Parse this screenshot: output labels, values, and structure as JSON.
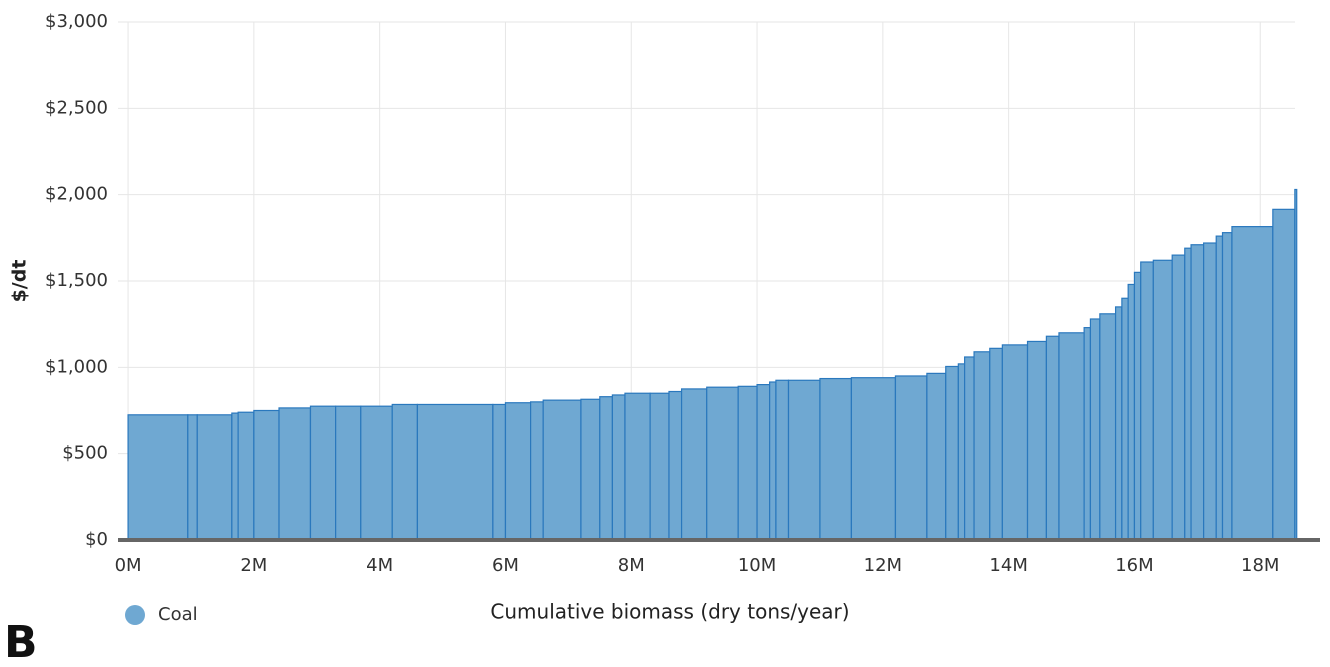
{
  "chart_data": {
    "type": "histogram",
    "bins": [
      0,
      0.95,
      1.1,
      1.65,
      1.75,
      2.0,
      2.4,
      2.9,
      3.3,
      3.7,
      4.2,
      4.6,
      5.8,
      6.0,
      6.4,
      6.6,
      7.2,
      7.5,
      7.7,
      7.9,
      8.3,
      8.6,
      8.8,
      9.2,
      9.7,
      10.0,
      10.2,
      10.3,
      10.5,
      11.0,
      11.5,
      12.2,
      12.7,
      13.0,
      13.2,
      13.3,
      13.45,
      13.7,
      13.9,
      14.3,
      14.6,
      14.8,
      15.2,
      15.3,
      15.45,
      15.7,
      15.8,
      15.9,
      16.0,
      16.1,
      16.3,
      16.6,
      16.8,
      16.9,
      17.1,
      17.3,
      17.4,
      17.55,
      18.2,
      18.55,
      18.58
    ],
    "series": [
      {
        "name": "Coal",
        "color": "#6fa8d2",
        "values": [
          725,
          725,
          725,
          735,
          740,
          750,
          765,
          775,
          775,
          775,
          785,
          785,
          785,
          795,
          800,
          810,
          815,
          830,
          840,
          850,
          850,
          860,
          875,
          885,
          890,
          900,
          915,
          925,
          925,
          935,
          940,
          950,
          965,
          1005,
          1020,
          1060,
          1090,
          1110,
          1130,
          1150,
          1180,
          1200,
          1230,
          1280,
          1310,
          1350,
          1400,
          1480,
          1550,
          1610,
          1620,
          1650,
          1690,
          1710,
          1720,
          1760,
          1780,
          1815,
          1915,
          2030
        ]
      }
    ],
    "xlabel": "Cumulative biomass (dry tons/year)",
    "ylabel": "$/dt",
    "xlim": [
      -0.16,
      18.95
    ],
    "ylim": [
      0,
      3000
    ],
    "xticks": [
      {
        "value": 0,
        "label": "0M"
      },
      {
        "value": 2,
        "label": "2M"
      },
      {
        "value": 4,
        "label": "4M"
      },
      {
        "value": 6,
        "label": "6M"
      },
      {
        "value": 8,
        "label": "8M"
      },
      {
        "value": 10,
        "label": "10M"
      },
      {
        "value": 12,
        "label": "12M"
      },
      {
        "value": 14,
        "label": "14M"
      },
      {
        "value": 16,
        "label": "16M"
      },
      {
        "value": 18,
        "label": "18M"
      }
    ],
    "yticks": [
      {
        "value": 0,
        "label": "$0"
      },
      {
        "value": 500,
        "label": "$500"
      },
      {
        "value": 1000,
        "label": "$1,000"
      },
      {
        "value": 1500,
        "label": "$1,500"
      },
      {
        "value": 2000,
        "label": "$2,000"
      },
      {
        "value": 2500,
        "label": "$2,500"
      },
      {
        "value": 3000,
        "label": "$3,000"
      }
    ],
    "grid": true,
    "legend": "bottom-left",
    "panel_label": "B"
  }
}
